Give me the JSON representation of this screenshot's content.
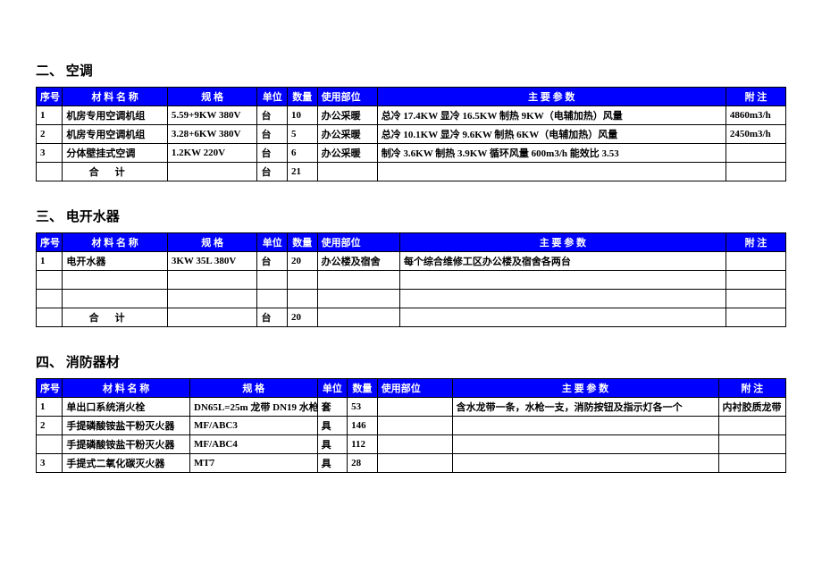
{
  "header_bg": "#0000ff",
  "header_fg": "#ffffff",
  "border_color": "#000000",
  "sections": {
    "s2": {
      "title": "二、   空调",
      "headers": {
        "seq": "序号",
        "name": "材 料 名 称",
        "spec": "规     格",
        "unit": "单位",
        "qty": "数量",
        "use": "使用部位",
        "param": "主 要 参 数",
        "note": "附  注"
      },
      "rows": [
        {
          "seq": "1",
          "name": "机房专用空调机组",
          "spec": "5.59+9KW 380V",
          "unit": "台",
          "qty": "10",
          "use": "办公采暖",
          "param": "总冷 17.4KW 显冷 16.5KW 制热 9KW（电辅加热）风量",
          "note": "4860m3/h"
        },
        {
          "seq": "2",
          "name": "机房专用空调机组",
          "spec": "3.28+6KW 380V",
          "unit": "台",
          "qty": "5",
          "use": "办公采暖",
          "param": "总冷 10.1KW 显冷 9.6KW 制热 6KW（电辅加热）风量",
          "note": "2450m3/h"
        },
        {
          "seq": "3",
          "name": "分体壁挂式空调",
          "spec": "1.2KW   220V",
          "unit": "台",
          "qty": "6",
          "use": "办公采暖",
          "param": "制冷 3.6KW 制热 3.9KW 循环风量 600m3/h 能效比 3.53",
          "note": ""
        }
      ],
      "total": {
        "label": "合计",
        "unit": "台",
        "qty": "21"
      }
    },
    "s3": {
      "title": "三、   电开水器",
      "headers": {
        "seq": "序号",
        "name": "材 料 名 称",
        "spec": "规     格",
        "unit": "单位",
        "qty": "数量",
        "use": "使用部位",
        "param": "主 要 参 数",
        "note": "附  注"
      },
      "rows": [
        {
          "seq": "1",
          "name": "电开水器",
          "spec": "3KW 35L 380V",
          "unit": "台",
          "qty": "20",
          "use": "办公楼及宿舍",
          "param": "每个综合维修工区办公楼及宿舍各两台",
          "note": ""
        },
        {
          "seq": "",
          "name": "",
          "spec": "",
          "unit": "",
          "qty": "",
          "use": "",
          "param": "",
          "note": ""
        },
        {
          "seq": "",
          "name": "",
          "spec": "",
          "unit": "",
          "qty": "",
          "use": "",
          "param": "",
          "note": ""
        }
      ],
      "total": {
        "label": "合计",
        "unit": "台",
        "qty": "20"
      }
    },
    "s4": {
      "title": "四、   消防器材",
      "headers": {
        "seq": "序号",
        "name": "材 料 名 称",
        "spec": "规     格",
        "unit": "单位",
        "qty": "数量",
        "use": "使用部位",
        "param": "主 要 参 数",
        "note": "附  注"
      },
      "rows": [
        {
          "seq": "1",
          "name": "单出口系统消火栓",
          "spec": "DN65L=25m 龙带 DN19 水枪",
          "unit": "套",
          "qty": "53",
          "use": "",
          "param": "含水龙带一条，水枪一支，消防按钮及指示灯各一个",
          "note": "内衬胶质龙带"
        },
        {
          "seq": "2",
          "name": "手提磷酸铵盐干粉灭火器",
          "spec": "MF/ABC3",
          "unit": "具",
          "qty": "146",
          "use": "",
          "param": "",
          "note": ""
        },
        {
          "seq": "",
          "name": "手提磷酸铵盐干粉灭火器",
          "spec": "MF/ABC4",
          "unit": "具",
          "qty": "112",
          "use": "",
          "param": "",
          "note": ""
        },
        {
          "seq": "3",
          "name": "手提式二氧化碳灭火器",
          "spec": "MT7",
          "unit": "具",
          "qty": "28",
          "use": "",
          "param": "",
          "note": ""
        }
      ]
    }
  }
}
